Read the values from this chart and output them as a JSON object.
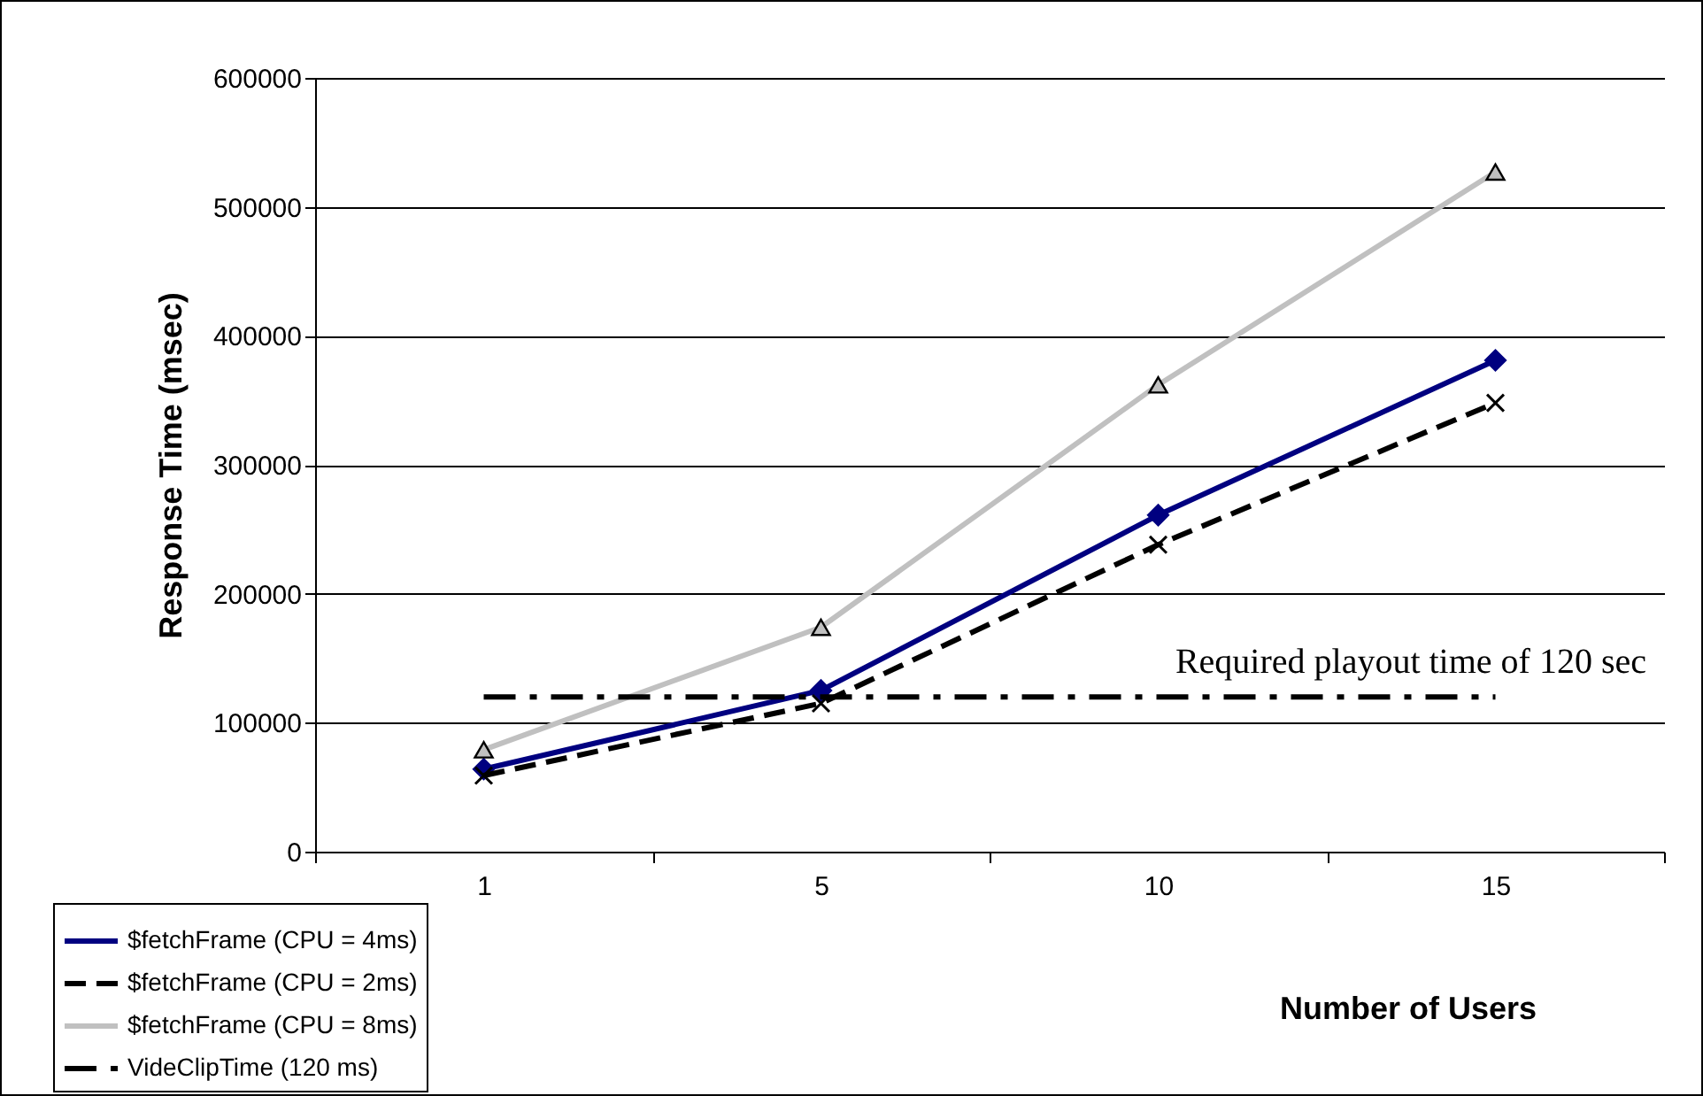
{
  "chart_data": {
    "type": "line",
    "xlabel": "Number of Users",
    "ylabel": "Response Time (msec)",
    "categories": [
      "1",
      "5",
      "10",
      "15"
    ],
    "series": [
      {
        "name": "$fetchFrame (CPU = 4ms)",
        "color": "#000080",
        "marker": "diamond",
        "line_style": "solid",
        "values": [
          64000,
          125000,
          261000,
          381000
        ]
      },
      {
        "name": "$fetchFrame (CPU = 2ms)",
        "color": "#000000",
        "marker": "cross",
        "line_style": "dashed",
        "values": [
          59000,
          115000,
          238000,
          348000
        ]
      },
      {
        "name": "$fetchFrame (CPU = 8ms)",
        "color": "#c0c0c0",
        "marker": "triangle",
        "line_style": "solid",
        "values": [
          79000,
          174000,
          362000,
          527000
        ]
      },
      {
        "name": "VideClipTime (120 ms)",
        "color": "#000000",
        "marker": "none",
        "line_style": "dashdot",
        "values": [
          120000,
          120000,
          120000,
          120000
        ]
      }
    ],
    "annotations": [
      "Required playout time of 120 sec"
    ],
    "ylim": [
      0,
      600000
    ],
    "yticks": [
      0,
      100000,
      200000,
      300000,
      400000,
      500000,
      600000
    ],
    "grid": "y",
    "legend": "bottom left"
  }
}
